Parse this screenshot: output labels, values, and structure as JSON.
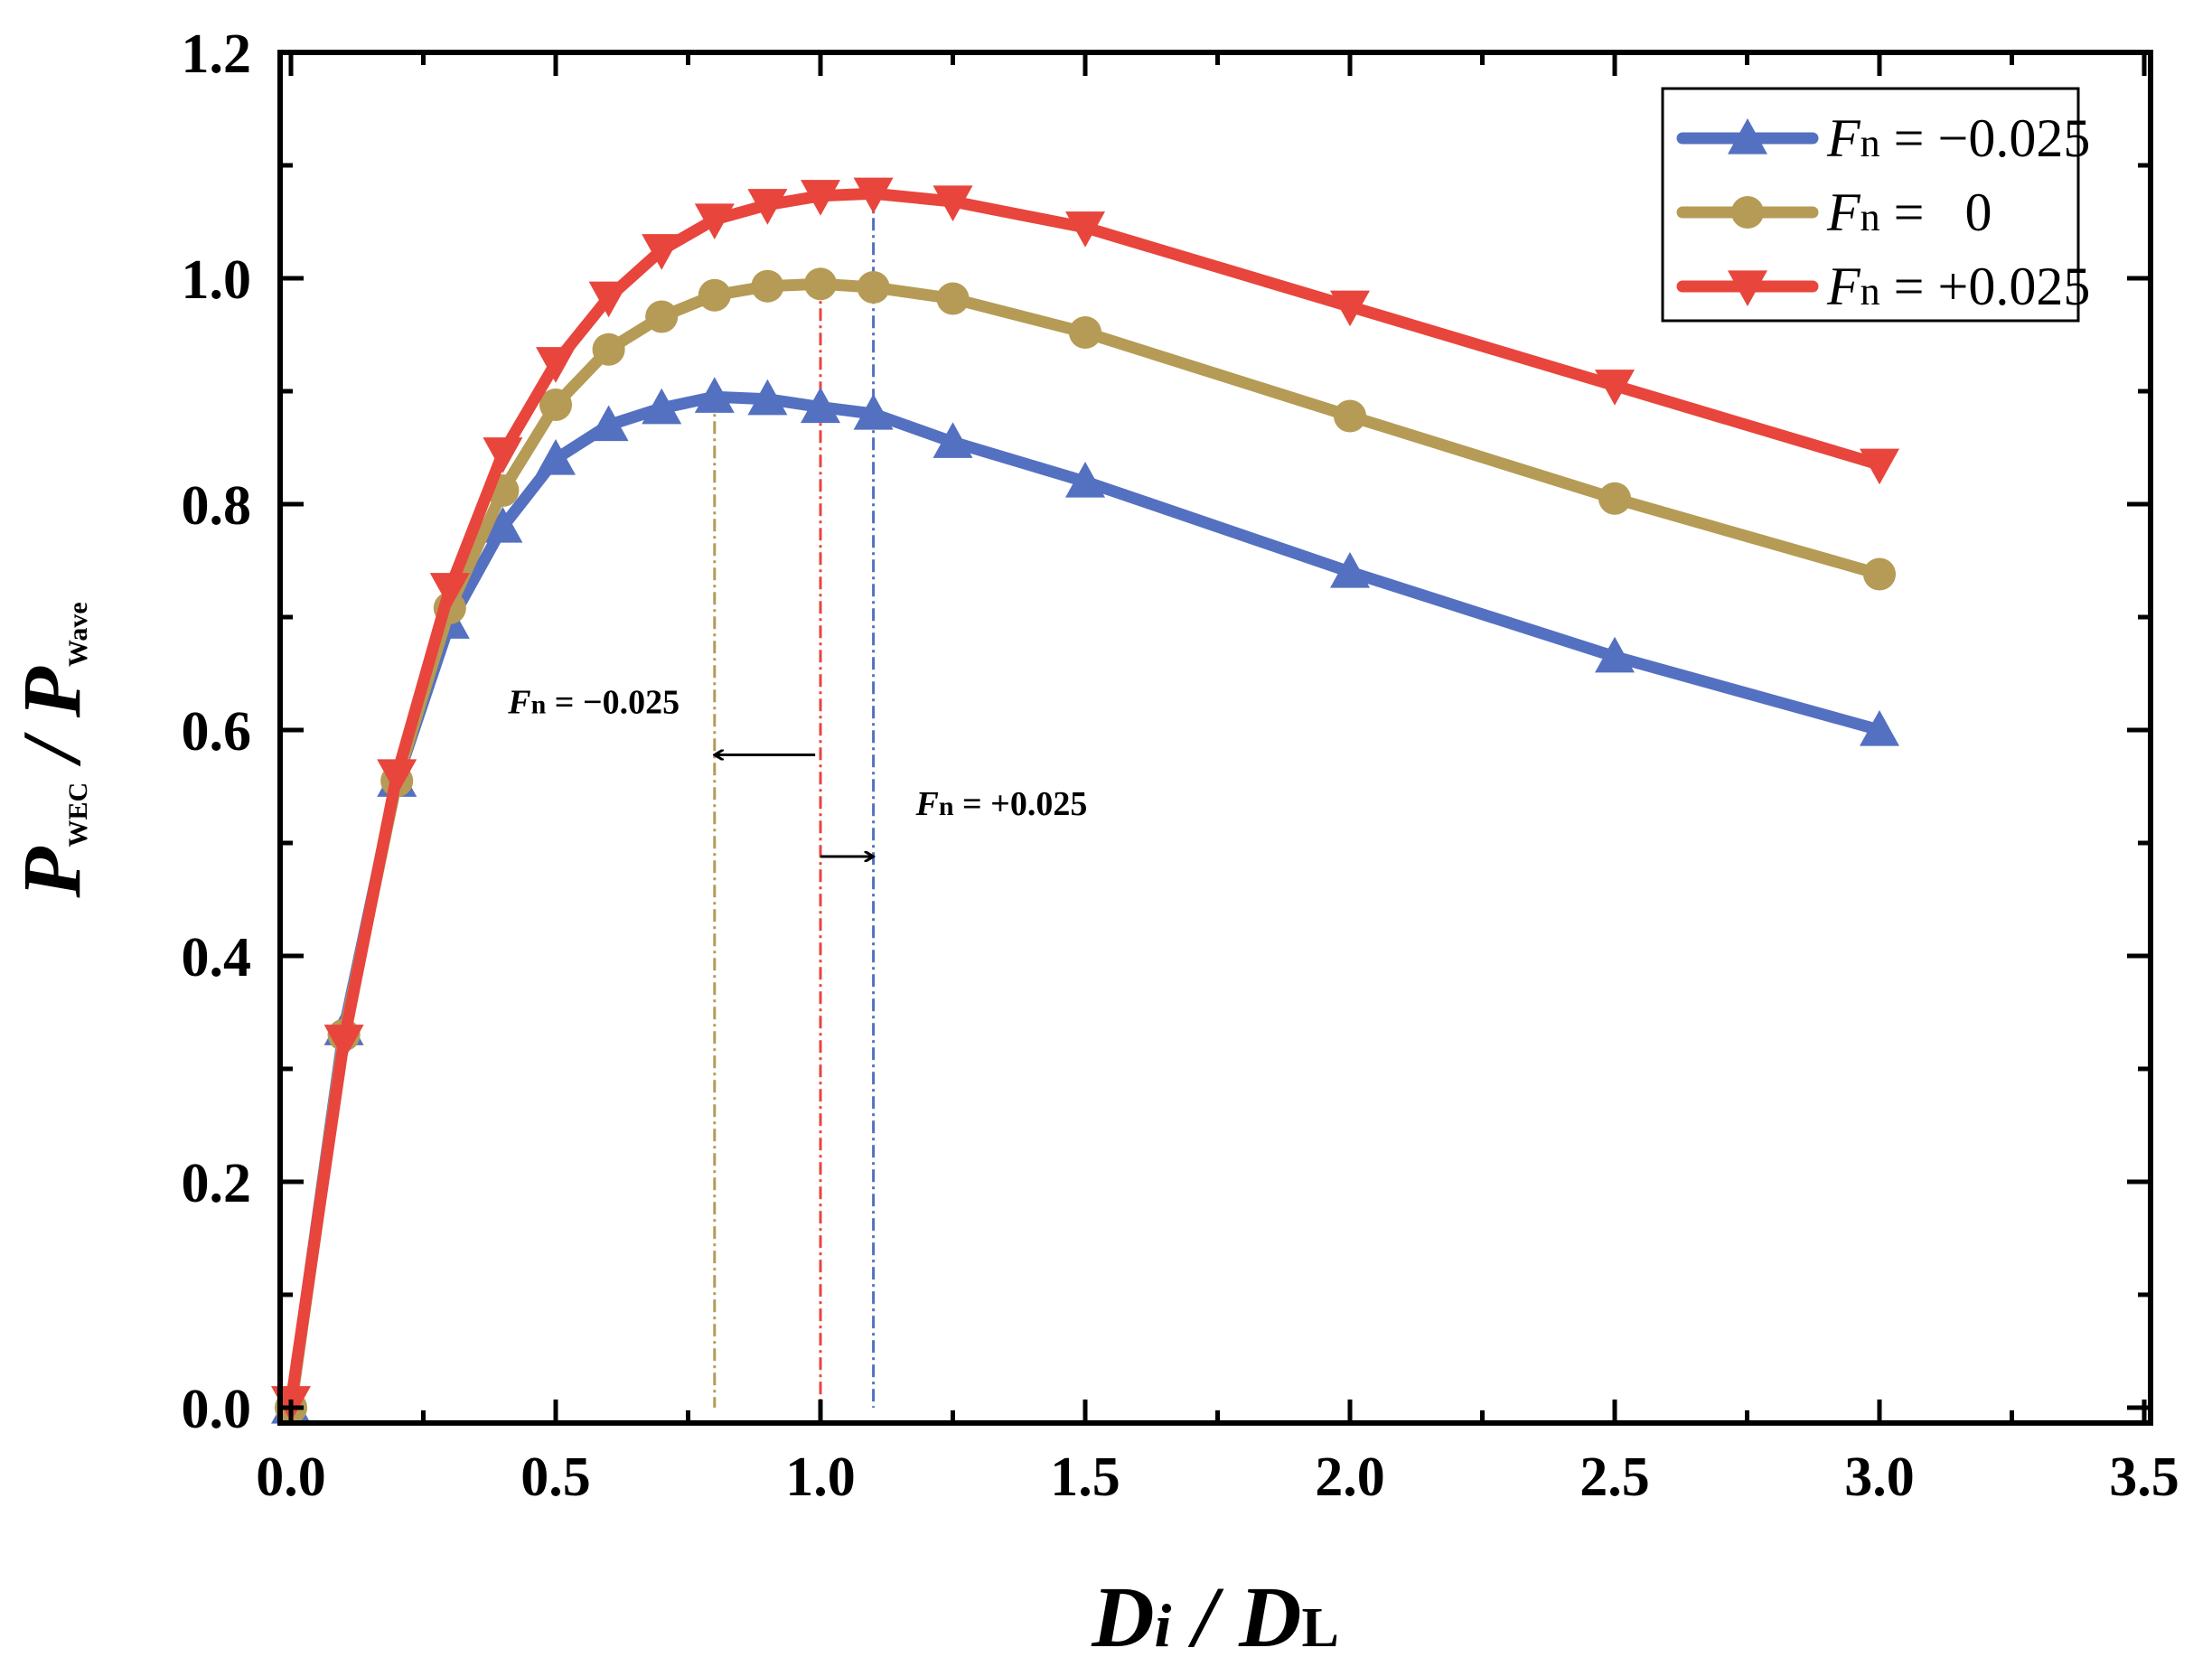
{
  "chart_data": {
    "type": "line",
    "title": "",
    "xlabel": {
      "main": "D",
      "sub1": "i",
      "sep": " / ",
      "main2": "D",
      "sub2": "L"
    },
    "ylabel": {
      "main": "P",
      "sub1": "WEC",
      "sep": " / ",
      "main2": "P",
      "sub2": "Wave"
    },
    "xlim": [
      0,
      3.5
    ],
    "ylim": [
      0,
      1.2
    ],
    "xticks": [
      "0.0",
      "0.5",
      "1.0",
      "1.5",
      "2.0",
      "2.5",
      "3.0",
      "3.5"
    ],
    "yticks": [
      "0.0",
      "0.2",
      "0.4",
      "0.6",
      "0.8",
      "1.0",
      "1.2"
    ],
    "xtick_values": [
      0,
      0.5,
      1.0,
      1.5,
      2.0,
      2.5,
      3.0,
      3.5
    ],
    "ytick_values": [
      0,
      0.2,
      0.4,
      0.6,
      0.8,
      1.0,
      1.2
    ],
    "grid": false,
    "legend_position": "top-right",
    "series": [
      {
        "name_prefix": "F",
        "name_sub": "n",
        "name_value": " = −0.025",
        "color": "#5470c1",
        "marker": "triangle-up",
        "x": [
          0,
          0.1,
          0.2,
          0.3,
          0.4,
          0.5,
          0.6,
          0.7,
          0.8,
          0.9,
          1.0,
          1.1,
          1.25,
          1.5,
          2.0,
          2.5,
          3.0
        ],
        "y": [
          0.0,
          0.335,
          0.555,
          0.695,
          0.78,
          0.84,
          0.87,
          0.885,
          0.895,
          0.893,
          0.886,
          0.88,
          0.855,
          0.82,
          0.74,
          0.665,
          0.6
        ]
      },
      {
        "name_prefix": "F",
        "name_sub": "n",
        "name_value": " =   0",
        "color": "#b59b55",
        "marker": "circle",
        "x": [
          0,
          0.1,
          0.2,
          0.3,
          0.4,
          0.5,
          0.6,
          0.7,
          0.8,
          0.9,
          1.0,
          1.1,
          1.25,
          1.5,
          2.0,
          2.5,
          3.0
        ],
        "y": [
          0.0,
          0.33,
          0.555,
          0.708,
          0.812,
          0.888,
          0.937,
          0.966,
          0.985,
          0.993,
          0.995,
          0.992,
          0.982,
          0.952,
          0.878,
          0.805,
          0.738
        ]
      },
      {
        "name_prefix": "F",
        "name_sub": "n",
        "name_value": " = +0.025",
        "color": "#e8453c",
        "marker": "triangle-down",
        "x": [
          0,
          0.1,
          0.2,
          0.3,
          0.4,
          0.5,
          0.6,
          0.7,
          0.8,
          0.9,
          1.0,
          1.1,
          1.25,
          1.5,
          2.0,
          2.5,
          3.0
        ],
        "y": [
          0.005,
          0.325,
          0.56,
          0.725,
          0.845,
          0.925,
          0.983,
          1.025,
          1.052,
          1.065,
          1.073,
          1.075,
          1.068,
          1.045,
          0.975,
          0.905,
          0.835
        ]
      }
    ],
    "vlines": [
      {
        "x": 0.8,
        "color": "#b59b55",
        "y_top": 0.895
      },
      {
        "x": 1.0,
        "color": "#e8453c",
        "y_top": 0.995
      },
      {
        "x": 1.1,
        "color": "#5470c1",
        "y_top": 1.075
      }
    ],
    "annotations": [
      {
        "prefix": "F",
        "sub": "n",
        "value": " = −0.025",
        "x": 0.41,
        "y": 0.615,
        "arrow_from": 0.99,
        "arrow_to": 0.8,
        "arrow_y": 0.578
      },
      {
        "prefix": "F",
        "sub": "n",
        "value": " = +0.025",
        "x": 1.18,
        "y": 0.525,
        "arrow_from": 1.0,
        "arrow_to": 1.1,
        "arrow_y": 0.488
      }
    ]
  }
}
